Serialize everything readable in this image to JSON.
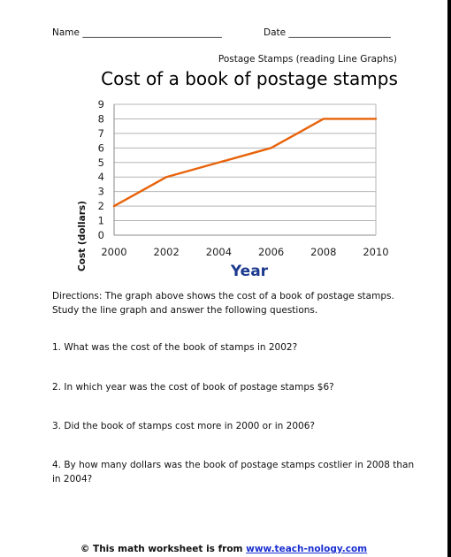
{
  "header": {
    "name_field": "Name ______________________________",
    "date_field": "Date ______________________",
    "subtitle": "Postage Stamps (reading Line Graphs)"
  },
  "chart_data": {
    "type": "line",
    "title": "Cost of a book of postage stamps",
    "xlabel": "Year",
    "ylabel": "Cost (dollars)",
    "x": [
      2000,
      2001,
      2002,
      2003,
      2004,
      2005,
      2006,
      2007,
      2008,
      2009,
      2010
    ],
    "series": [
      {
        "values": [
          2,
          3,
          4,
          4.5,
          5,
          5.5,
          6,
          7,
          8,
          8,
          8
        ]
      }
    ],
    "xlim": [
      2000,
      2010
    ],
    "ylim": [
      0,
      9
    ],
    "x_ticks": [
      "2000",
      "2002",
      "2004",
      "2006",
      "2008",
      "2010"
    ],
    "y_ticks": [
      "0",
      "1",
      "2",
      "3",
      "4",
      "5",
      "6",
      "7",
      "8",
      "9"
    ],
    "grid": true,
    "line_color": "#e8630a"
  },
  "worksheet": {
    "directions": "Directions: The graph above shows the cost of a book of postage stamps. Study the line graph and answer the following questions.",
    "questions": [
      "1. What was the cost of the book of stamps in 2002?",
      "2. In which year was the cost of book of postage stamps $6?",
      "3. Did the book of stamps cost more in 2000 or in 2006?",
      " 4. By how many dollars was the book of postage stamps costlier in 2008 than in 2004?"
    ],
    "footer_prefix": "© This math worksheet is from ",
    "footer_link": "www.teach-nology.com"
  }
}
